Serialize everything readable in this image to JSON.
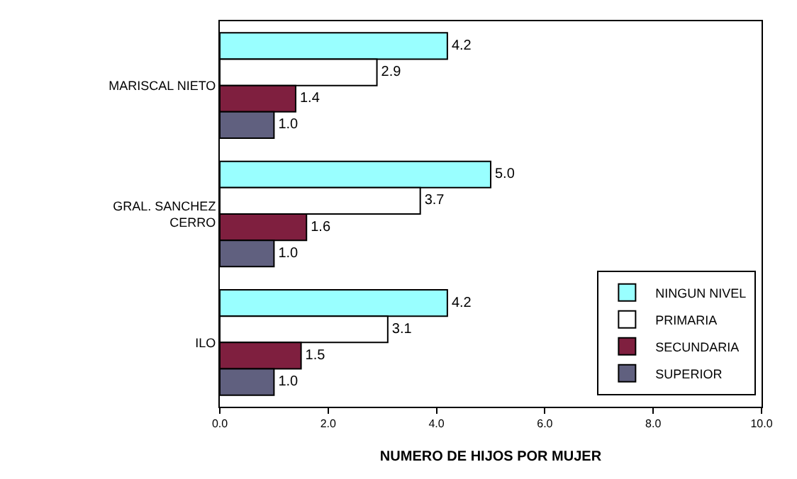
{
  "chart_data": {
    "type": "bar",
    "orientation": "horizontal",
    "xlabel": "NUMERO DE HIJOS POR MUJER",
    "categories": [
      "MARISCAL NIETO",
      "GRAL. SANCHEZ CERRO",
      "ILO"
    ],
    "series": [
      {
        "name": "NINGUN NIVEL",
        "color": "#99ffff",
        "values": [
          4.2,
          5.0,
          4.2
        ],
        "value_labels": [
          "4.2",
          "5.0",
          "4.2"
        ]
      },
      {
        "name": "PRIMARIA",
        "color": "#ffffff",
        "values": [
          2.9,
          3.7,
          3.1
        ],
        "value_labels": [
          "2.9",
          "3.7",
          "3.1"
        ]
      },
      {
        "name": "SECUNDARIA",
        "color": "#7f1f3f",
        "values": [
          1.4,
          1.6,
          1.5
        ],
        "value_labels": [
          "1.4",
          "1.6",
          "1.5"
        ]
      },
      {
        "name": "SUPERIOR",
        "color": "#60607f",
        "values": [
          1.0,
          1.0,
          1.0
        ],
        "value_labels": [
          "1.0",
          "1.0",
          "1.0"
        ]
      }
    ],
    "xlim": [
      0,
      10
    ],
    "xticks": [
      {
        "value": 0,
        "label": "0.0"
      },
      {
        "value": 2,
        "label": "2.0"
      },
      {
        "value": 4,
        "label": "4.0"
      },
      {
        "value": 6,
        "label": "6.0"
      },
      {
        "value": 8,
        "label": "8.0"
      },
      {
        "value": 10,
        "label": "10.0"
      }
    ],
    "legend": "bottom right"
  }
}
